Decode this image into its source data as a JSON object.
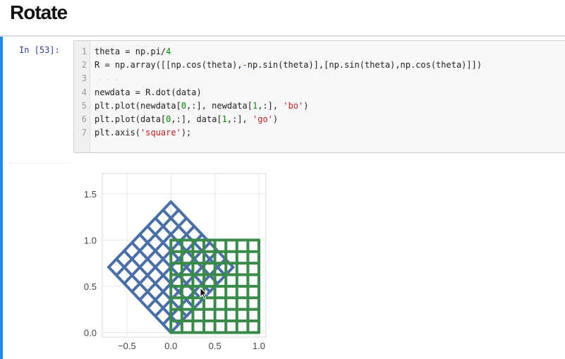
{
  "page": {
    "heading": "Rotate"
  },
  "cell": {
    "prompt": "In [53]:",
    "lines": [
      {
        "num": "1",
        "segments": [
          {
            "text": "theta = np.pi/",
            "kind": "plain"
          },
          {
            "text": "4",
            "kind": "n"
          }
        ]
      },
      {
        "num": "2",
        "segments": [
          {
            "text": "R = np.array([[np.cos(theta),",
            "kind": "plain"
          },
          {
            "text": "-",
            "kind": "s"
          },
          {
            "text": "np.sin(theta)],[np.sin(theta),np.cos(theta)]])",
            "kind": "plain"
          }
        ]
      },
      {
        "num": "3",
        "segments": []
      },
      {
        "num": "4",
        "segments": [
          {
            "text": "newdata = R.dot(data)",
            "kind": "plain"
          }
        ]
      },
      {
        "num": "5",
        "segments": [
          {
            "text": "plt.plot(newdata[",
            "kind": "plain"
          },
          {
            "text": "0",
            "kind": "n"
          },
          {
            "text": ",:], newdata[",
            "kind": "plain"
          },
          {
            "text": "1",
            "kind": "n"
          },
          {
            "text": ",:], ",
            "kind": "plain"
          },
          {
            "text": "'bo'",
            "kind": "s"
          },
          {
            "text": ")",
            "kind": "plain"
          }
        ]
      },
      {
        "num": "6",
        "segments": [
          {
            "text": "plt.plot(data[",
            "kind": "plain"
          },
          {
            "text": "0",
            "kind": "n"
          },
          {
            "text": ",:], data[",
            "kind": "plain"
          },
          {
            "text": "1",
            "kind": "n"
          },
          {
            "text": ",:], ",
            "kind": "plain"
          },
          {
            "text": "'go'",
            "kind": "s"
          },
          {
            "text": ")",
            "kind": "plain"
          }
        ]
      },
      {
        "num": "7",
        "segments": [
          {
            "text": "plt.axis(",
            "kind": "plain"
          },
          {
            "text": "'square'",
            "kind": "s"
          },
          {
            "text": ");",
            "kind": "plain"
          }
        ]
      }
    ]
  },
  "colors": {
    "cell_bar": "#1e88e5",
    "prompt": "#303f9f",
    "blue_series": "#4a6fa5",
    "green_series": "#3a8a4a",
    "grid": "#e6e6e6"
  },
  "chart_data": {
    "type": "scatter",
    "title": "",
    "xlabel": "",
    "ylabel": "",
    "xlim": [
      -0.78,
      1.08
    ],
    "ylim": [
      -0.05,
      1.72
    ],
    "xticks": [
      -0.5,
      0.0,
      0.5,
      1.0
    ],
    "xtick_labels": [
      "−0.5",
      "0.0",
      "0.5",
      "1.0"
    ],
    "yticks": [
      0.0,
      0.5,
      1.0,
      1.5
    ],
    "ytick_labels": [
      "0.0",
      "0.5",
      "1.0",
      "1.5"
    ],
    "grid": true,
    "legend": "none",
    "axis": "square",
    "series": [
      {
        "color": "blue",
        "marker": "bo",
        "description": "grid of original points rotated by theta = pi/4",
        "grid_lines": 9,
        "corners": [
          [
            0.0,
            0.0
          ],
          [
            0.707,
            0.707
          ],
          [
            0.0,
            1.414
          ],
          [
            -0.707,
            0.707
          ]
        ]
      },
      {
        "color": "green",
        "marker": "go",
        "description": "original points: square grid on [0,1] x [0,1]",
        "grid_lines": 9,
        "corners": [
          [
            0.0,
            0.0
          ],
          [
            1.0,
            0.0
          ],
          [
            1.0,
            1.0
          ],
          [
            0.0,
            1.0
          ]
        ]
      }
    ]
  }
}
